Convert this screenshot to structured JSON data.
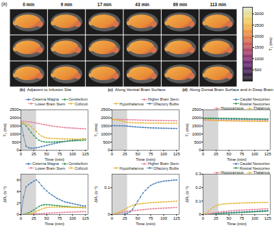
{
  "chart_data": [
    {
      "type": "image_grid",
      "panel": "(a)",
      "columns": [
        "0 min",
        "9 min",
        "17 min",
        "43 min",
        "69 min",
        "113 min"
      ],
      "rows": 3,
      "colorbar": {
        "label": "T₁ (ms)",
        "range": [
          0,
          3300
        ],
        "ticks": [
          500,
          1000,
          1500,
          2000,
          2500,
          3000
        ],
        "colors": [
          "#050505",
          "#4a0c6b",
          "#a52c60",
          "#ed6925",
          "#f7d13d",
          "#d8e3c8"
        ]
      }
    },
    {
      "type": "line",
      "panel": "(b)",
      "title": "Adjacent to Infusion Site",
      "x_label": "Time (min)",
      "y_label": "T₁ (ms)",
      "x": [
        0,
        5,
        10,
        15,
        20,
        25,
        30,
        35,
        40,
        45,
        50,
        55,
        60,
        65,
        70,
        75,
        80,
        85,
        90,
        95,
        100,
        105,
        110,
        115,
        120,
        125
      ],
      "xlim": [
        0,
        130
      ],
      "xticks": [
        0,
        25,
        50,
        75,
        100,
        125
      ],
      "ylim": [
        0,
        2500
      ],
      "yticks": [
        0,
        500,
        1000,
        1500,
        2000,
        2500
      ],
      "highlight": [
        0,
        30
      ],
      "marker": "circle",
      "legend": "top-right",
      "series": [
        {
          "name": "Cisterna Magna",
          "color": "#4a7fb5",
          "values": [
            1750,
            900,
            250,
            150,
            130,
            130,
            150,
            180,
            220,
            260,
            300,
            340,
            380,
            420,
            450,
            480,
            510,
            540,
            570,
            590,
            610,
            630,
            650,
            670,
            690,
            700
          ]
        },
        {
          "name": "Cerebellum",
          "color": "#3a9a5a",
          "values": [
            1700,
            1650,
            1500,
            1300,
            1100,
            900,
            750,
            620,
            550,
            510,
            500,
            500,
            505,
            510,
            520,
            530,
            540,
            550,
            560,
            570,
            580,
            590,
            595,
            600,
            610,
            620
          ]
        },
        {
          "name": "Lower Brain Stem",
          "color": "#e8849a",
          "values": [
            1800,
            1790,
            1780,
            1760,
            1740,
            1710,
            1680,
            1650,
            1620,
            1590,
            1560,
            1530,
            1500,
            1480,
            1460,
            1440,
            1420,
            1400,
            1390,
            1380,
            1370,
            1360,
            1350,
            1340,
            1330,
            1320
          ]
        },
        {
          "name": "Colliculi",
          "color": "#e6b93c",
          "values": [
            1700,
            1680,
            1640,
            1560,
            1450,
            1300,
            1150,
            1000,
            880,
            800,
            760,
            740,
            730,
            720,
            715,
            710,
            705,
            700,
            695,
            690,
            690,
            685,
            680,
            680,
            675,
            670
          ]
        }
      ]
    },
    {
      "type": "line",
      "panel": "(b)",
      "x_label": "Time (min)",
      "y_label": "ΔR₁ (s⁻¹)",
      "x": [
        0,
        5,
        10,
        15,
        20,
        25,
        30,
        35,
        40,
        45,
        50,
        55,
        60,
        65,
        70,
        75,
        80,
        85,
        90,
        95,
        100,
        105,
        110,
        115,
        120,
        125
      ],
      "xlim": [
        0,
        130
      ],
      "xticks": [
        0,
        25,
        50,
        75,
        100,
        125
      ],
      "ylim": [
        0,
        7
      ],
      "yticks": [
        0,
        2,
        4,
        6
      ],
      "highlight": [
        0,
        30
      ],
      "marker": "circle",
      "legend": "top-right",
      "series": [
        {
          "name": "Cisterna Magna",
          "color": "#4a7fb5",
          "values": [
            0,
            3.0,
            4.8,
            5.2,
            5.5,
            5.8,
            6.0,
            5.6,
            5.0,
            4.5,
            4.1,
            3.7,
            3.4,
            3.1,
            2.8,
            2.6,
            2.4,
            2.2,
            2.1,
            2.0,
            1.9,
            1.8,
            1.7,
            1.6,
            1.5,
            1.5
          ]
        },
        {
          "name": "Cerebellum",
          "color": "#3a9a5a",
          "values": [
            0,
            0.05,
            0.15,
            0.3,
            0.55,
            0.8,
            1.1,
            1.4,
            1.6,
            1.7,
            1.7,
            1.7,
            1.65,
            1.6,
            1.55,
            1.5,
            1.45,
            1.4,
            1.4,
            1.35,
            1.3,
            1.3,
            1.25,
            1.25,
            1.2,
            1.2
          ]
        },
        {
          "name": "Lower Brain Stem",
          "color": "#e8849a",
          "values": [
            0,
            0,
            0.02,
            0.05,
            0.08,
            0.1,
            0.12,
            0.15,
            0.18,
            0.2,
            0.22,
            0.25,
            0.27,
            0.3,
            0.32,
            0.34,
            0.36,
            0.38,
            0.4,
            0.42,
            0.44,
            0.45,
            0.47,
            0.48,
            0.5,
            0.5
          ]
        },
        {
          "name": "Colliculi",
          "color": "#e6b93c",
          "values": [
            0,
            0.01,
            0.03,
            0.1,
            0.2,
            0.35,
            0.55,
            0.75,
            0.95,
            1.1,
            1.2,
            1.25,
            1.3,
            1.3,
            1.3,
            1.3,
            1.28,
            1.27,
            1.26,
            1.25,
            1.24,
            1.23,
            1.22,
            1.21,
            1.2,
            1.2
          ]
        }
      ]
    },
    {
      "type": "line",
      "panel": "(c)",
      "title": "Along Ventral Brain Surface",
      "x_label": "Time (min)",
      "y_label": "T₁ (ms)",
      "x": [
        0,
        5,
        10,
        15,
        20,
        25,
        30,
        35,
        40,
        45,
        50,
        55,
        60,
        65,
        70,
        75,
        80,
        85,
        90,
        95,
        100,
        105,
        110,
        115,
        120,
        125
      ],
      "xlim": [
        0,
        130
      ],
      "xticks": [
        0,
        25,
        50,
        75,
        100,
        125
      ],
      "ylim": [
        0,
        2500
      ],
      "yticks": [
        0,
        500,
        1000,
        1500,
        2000,
        2500
      ],
      "highlight": [
        0,
        30
      ],
      "marker": "circle",
      "legend": "top-right",
      "series": [
        {
          "name": "Higher Brain Stem",
          "color": "#e8849a",
          "values": [
            1920,
            1915,
            1910,
            1905,
            1900,
            1895,
            1890,
            1885,
            1880,
            1875,
            1870,
            1865,
            1860,
            1855,
            1850,
            1848,
            1845,
            1842,
            1840,
            1838,
            1835,
            1832,
            1830,
            1828,
            1825,
            1822
          ]
        },
        {
          "name": "Hypothalamus",
          "color": "#e6b93c",
          "values": [
            1900,
            1890,
            1870,
            1840,
            1800,
            1760,
            1730,
            1710,
            1700,
            1695,
            1690,
            1688,
            1686,
            1684,
            1682,
            1680,
            1680,
            1678,
            1676,
            1675,
            1674,
            1672,
            1670,
            1670,
            1668,
            1665
          ]
        },
        {
          "name": "Olfactory Bulbs",
          "color": "#4a7fb5",
          "values": [
            1520,
            1518,
            1515,
            1512,
            1510,
            1500,
            1490,
            1475,
            1460,
            1445,
            1430,
            1420,
            1410,
            1400,
            1392,
            1385,
            1380,
            1375,
            1370,
            1365,
            1360,
            1358,
            1355,
            1350,
            1348,
            1345
          ]
        }
      ]
    },
    {
      "type": "line",
      "panel": "(c)",
      "x_label": "Time (min)",
      "y_label": "ΔR₁ (s⁻¹)",
      "x": [
        0,
        5,
        10,
        15,
        20,
        25,
        30,
        35,
        40,
        45,
        50,
        55,
        60,
        65,
        70,
        75,
        80,
        85,
        90,
        95,
        100,
        105,
        110,
        115,
        120,
        125
      ],
      "xlim": [
        0,
        130
      ],
      "xticks": [
        0,
        25,
        50,
        75,
        100,
        125
      ],
      "ylim": [
        0,
        0.15
      ],
      "yticks": [
        0,
        0.1
      ],
      "highlight": [
        0,
        30
      ],
      "marker": "circle",
      "legend": "top-right",
      "series": [
        {
          "name": "Higher Brain Stem",
          "color": "#e8849a",
          "values": [
            0,
            0.002,
            0.004,
            0.006,
            0.008,
            0.01,
            0.012,
            0.013,
            0.014,
            0.015,
            0.016,
            0.017,
            0.018,
            0.019,
            0.02,
            0.021,
            0.022,
            0.022,
            0.023,
            0.023,
            0.024,
            0.024,
            0.025,
            0.025,
            0.026,
            0.026
          ]
        },
        {
          "name": "Hypothalamus",
          "color": "#e6b93c",
          "values": [
            0,
            0.003,
            0.006,
            0.01,
            0.015,
            0.02,
            0.025,
            0.03,
            0.034,
            0.037,
            0.039,
            0.04,
            0.041,
            0.042,
            0.043,
            0.044,
            0.045,
            0.045,
            0.046,
            0.046,
            0.047,
            0.047,
            0.048,
            0.048,
            0.049,
            0.05
          ]
        },
        {
          "name": "Olfactory Bulbs",
          "color": "#4a7fb5",
          "values": [
            0,
            0,
            0,
            0,
            0,
            0.002,
            0.005,
            0.01,
            0.02,
            0.035,
            0.05,
            0.065,
            0.08,
            0.09,
            0.1,
            0.108,
            0.113,
            0.117,
            0.12,
            0.122,
            0.124,
            0.125,
            0.126,
            0.127,
            0.128,
            0.128
          ]
        }
      ]
    },
    {
      "type": "line",
      "panel": "(d)",
      "title": "Along Dorsal Brain Surface and in Deep Brain",
      "x_label": "Time (min)",
      "y_label": "T₁ (ms)",
      "x": [
        0,
        5,
        10,
        15,
        20,
        25,
        30,
        35,
        40,
        45,
        50,
        55,
        60,
        65,
        70,
        75,
        80,
        85,
        90,
        95,
        100,
        105,
        110,
        115,
        120,
        125
      ],
      "xlim": [
        0,
        130
      ],
      "xticks": [
        0,
        25,
        50,
        75,
        100,
        125
      ],
      "ylim": [
        0,
        2500
      ],
      "yticks": [
        0,
        500,
        1000,
        1500,
        2000,
        2500
      ],
      "highlight": [
        0,
        30
      ],
      "marker": "circle",
      "legend": "top-right",
      "series": [
        {
          "name": "Caudal Neocortex",
          "color": "#4a7fb5",
          "values": [
            1960,
            1958,
            1955,
            1952,
            1950,
            1948,
            1945,
            1942,
            1940,
            1938,
            1935,
            1932,
            1930,
            1928,
            1925,
            1922,
            1920,
            1918,
            1915,
            1912,
            1910,
            1908,
            1905,
            1902,
            1900,
            1898
          ]
        },
        {
          "name": "Rostral Neocortex",
          "color": "#3a9a5a",
          "values": [
            1990,
            1988,
            1986,
            1984,
            1982,
            1980,
            1978,
            1976,
            1974,
            1972,
            1970,
            1968,
            1965,
            1962,
            1960,
            1958,
            1955,
            1952,
            1950,
            1948,
            1945,
            1942,
            1940,
            1938,
            1935,
            1932
          ]
        },
        {
          "name": "Hippocampus",
          "color": "#e8849a",
          "values": [
            1860,
            1858,
            1856,
            1854,
            1852,
            1850,
            1848,
            1846,
            1844,
            1842,
            1840,
            1838,
            1836,
            1834,
            1832,
            1830,
            1828,
            1826,
            1824,
            1822,
            1820,
            1818,
            1816,
            1814,
            1812,
            1810
          ]
        },
        {
          "name": "Thalamus",
          "color": "#e6b93c",
          "values": [
            1900,
            1895,
            1885,
            1870,
            1855,
            1840,
            1830,
            1822,
            1818,
            1815,
            1812,
            1810,
            1808,
            1806,
            1804,
            1802,
            1800,
            1798,
            1796,
            1794,
            1792,
            1790,
            1788,
            1786,
            1784,
            1782
          ]
        }
      ]
    },
    {
      "type": "line",
      "panel": "(d)",
      "x_label": "Time (min)",
      "y_label": "ΔR₁ (s⁻¹)",
      "x": [
        0,
        5,
        10,
        15,
        20,
        25,
        30,
        35,
        40,
        45,
        50,
        55,
        60,
        65,
        70,
        75,
        80,
        85,
        90,
        95,
        100,
        105,
        110,
        115,
        120,
        125
      ],
      "xlim": [
        0,
        130
      ],
      "xticks": [
        0,
        25,
        50,
        75,
        100,
        125
      ],
      "ylim": [
        0,
        0.3
      ],
      "yticks": [
        0,
        0.1,
        0.2,
        0.3
      ],
      "highlight": [
        0,
        30
      ],
      "marker": "circle",
      "legend": "top-right",
      "series": [
        {
          "name": "Caudal Neocortex",
          "color": "#4a7fb5",
          "values": [
            0,
            0.002,
            0.004,
            0.005,
            0.006,
            0.008,
            0.01,
            0.011,
            0.012,
            0.013,
            0.014,
            0.015,
            0.016,
            0.017,
            0.018,
            0.019,
            0.02,
            0.021,
            0.022,
            0.023,
            0.024,
            0.025,
            0.026,
            0.027,
            0.028,
            0.029
          ]
        },
        {
          "name": "Rostral Neocortex",
          "color": "#3a9a5a",
          "values": [
            0,
            0.001,
            0.002,
            0.003,
            0.004,
            0.005,
            0.006,
            0.007,
            0.008,
            0.009,
            0.01,
            0.011,
            0.012,
            0.013,
            0.014,
            0.015,
            0.016,
            0.017,
            0.018,
            0.019,
            0.02,
            0.021,
            0.022,
            0.023,
            0.024,
            0.025
          ]
        },
        {
          "name": "Hippocampus",
          "color": "#e8849a",
          "values": [
            0,
            0.003,
            0.006,
            0.009,
            0.012,
            0.015,
            0.018,
            0.02,
            0.022,
            0.024,
            0.026,
            0.028,
            0.03,
            0.031,
            0.032,
            0.033,
            0.034,
            0.035,
            0.036,
            0.037,
            0.038,
            0.039,
            0.04,
            0.041,
            0.042,
            0.043
          ]
        },
        {
          "name": "Thalamus",
          "color": "#e6b93c",
          "values": [
            0,
            0.01,
            0.025,
            0.04,
            0.055,
            0.065,
            0.072,
            0.076,
            0.078,
            0.08,
            0.081,
            0.082,
            0.083,
            0.084,
            0.085,
            0.086,
            0.086,
            0.087,
            0.087,
            0.088,
            0.088,
            0.089,
            0.089,
            0.09,
            0.09,
            0.09
          ]
        }
      ]
    }
  ]
}
